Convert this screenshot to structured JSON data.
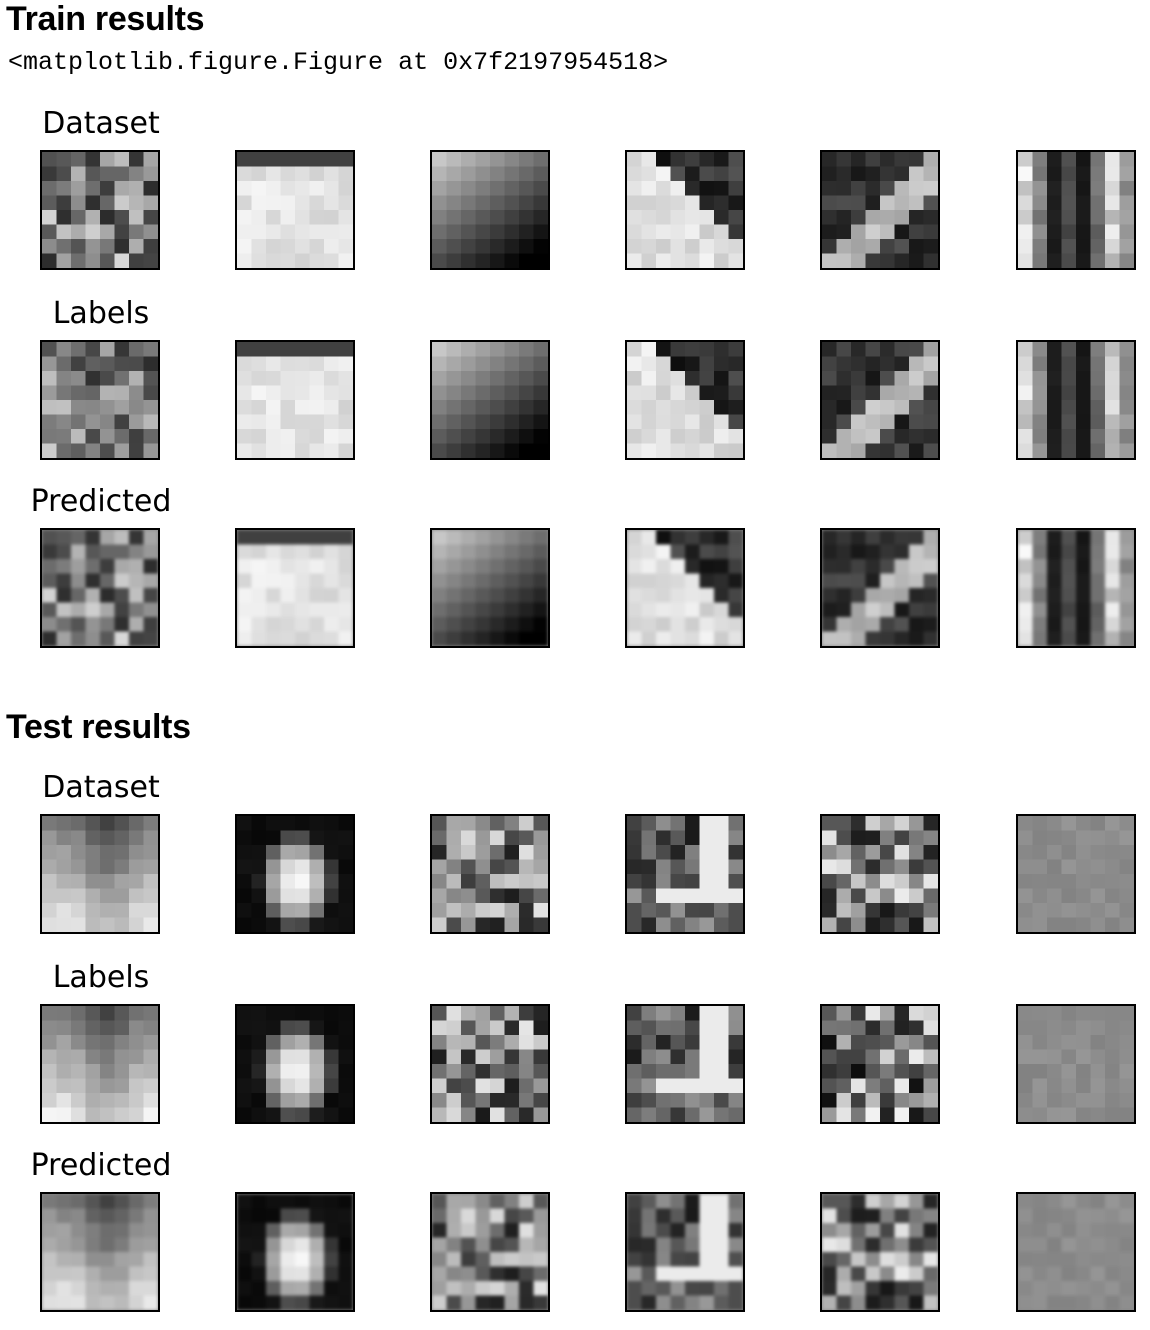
{
  "train": {
    "title": "Train results",
    "figure_repr": "<matplotlib.figure.Figure at 0x7f2197954518>",
    "rows": [
      {
        "label": "Dataset"
      },
      {
        "label": "Labels"
      },
      {
        "label": "Predicted"
      }
    ]
  },
  "test": {
    "title": "Test results",
    "rows": [
      {
        "label": "Dataset"
      },
      {
        "label": "Labels"
      },
      {
        "label": "Predicted"
      }
    ]
  },
  "tile_colormap": "gray",
  "tile_border_color": "#000000",
  "columns_per_row": 6
}
